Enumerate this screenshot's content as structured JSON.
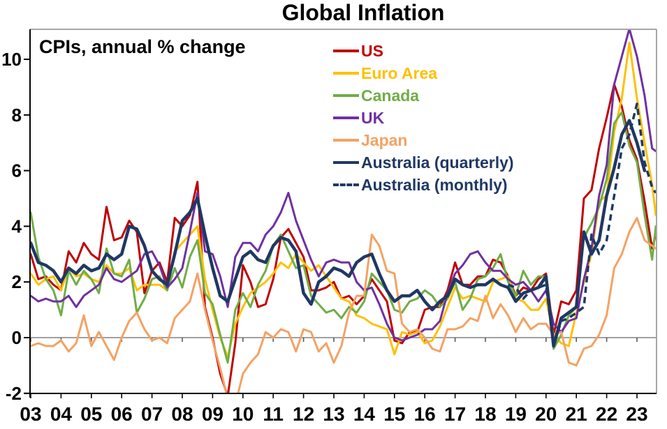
{
  "title": "Global Inflation",
  "chart_data": {
    "type": "line",
    "title": "Global Inflation",
    "subtitle": "CPIs, annual % change",
    "legend_position": "top-right-inside",
    "x_axis": {
      "tick_labels": [
        "03",
        "04",
        "05",
        "06",
        "07",
        "08",
        "09",
        "10",
        "11",
        "12",
        "13",
        "14",
        "15",
        "16",
        "17",
        "18",
        "19",
        "20",
        "21",
        "22",
        "23"
      ],
      "start_year": 2003,
      "label_step_years": 1
    },
    "y_axis": {
      "ticks": [
        -2,
        0,
        2,
        4,
        6,
        8,
        10
      ],
      "min": -2,
      "max": 11.1,
      "unit": "% change"
    },
    "grid": {
      "zero_line": true,
      "other_gridlines": false
    },
    "style": {
      "zero_line_color": "#808080",
      "frame_color": "#A6A6A6",
      "axis_color": "#000000",
      "text_color": "#000000",
      "background": "#FFFFFF"
    },
    "x_start": 2003.0,
    "x_step": 0.25,
    "series": [
      {
        "name": "US",
        "color": "#C00000",
        "style": "solid",
        "line_width": 3,
        "x_start": 2003.0,
        "values": [
          3.0,
          2.1,
          2.2,
          1.9,
          1.7,
          3.1,
          2.7,
          3.4,
          3.0,
          2.8,
          4.7,
          3.5,
          3.6,
          4.2,
          3.8,
          1.6,
          2.4,
          2.7,
          2.0,
          4.3,
          4.0,
          4.4,
          5.6,
          1.1,
          0.0,
          -1.3,
          -2.1,
          -0.2,
          2.6,
          2.0,
          1.1,
          1.2,
          2.1,
          3.6,
          3.9,
          3.4,
          2.9,
          1.7,
          1.7,
          1.8,
          2.0,
          1.4,
          1.5,
          1.2,
          1.5,
          2.1,
          1.7,
          1.3,
          -0.1,
          -0.2,
          0.2,
          0.2,
          1.0,
          1.1,
          1.1,
          1.7,
          2.7,
          1.9,
          1.9,
          2.2,
          2.2,
          2.8,
          2.7,
          2.2,
          1.5,
          1.8,
          1.7,
          2.1,
          2.3,
          0.1,
          1.3,
          1.2,
          1.7,
          5.0,
          5.3,
          6.8,
          7.9,
          9.1,
          8.3,
          7.1,
          6.4,
          4.9,
          3.2,
          3.7
        ]
      },
      {
        "name": "Euro Area",
        "color": "#FFC000",
        "style": "solid",
        "line_width": 3,
        "x_start": 2003.0,
        "values": [
          2.3,
          1.9,
          2.1,
          2.2,
          1.7,
          2.5,
          2.2,
          2.3,
          2.1,
          2.0,
          2.6,
          2.3,
          2.3,
          2.5,
          1.7,
          1.9,
          1.9,
          1.9,
          1.7,
          3.1,
          3.4,
          3.7,
          4.0,
          2.1,
          1.0,
          0.0,
          -0.7,
          0.5,
          1.1,
          1.6,
          1.8,
          2.0,
          2.3,
          2.7,
          2.5,
          3.0,
          2.7,
          2.4,
          2.6,
          2.2,
          1.8,
          1.4,
          1.3,
          0.8,
          0.7,
          0.5,
          0.4,
          0.3,
          -0.6,
          0.2,
          0.1,
          0.2,
          -0.2,
          -0.1,
          0.4,
          1.1,
          1.8,
          1.4,
          1.5,
          1.4,
          1.3,
          2.0,
          2.1,
          2.2,
          1.4,
          1.3,
          1.0,
          1.0,
          1.4,
          0.1,
          -0.2,
          -0.3,
          0.9,
          2.0,
          3.0,
          4.9,
          5.1,
          7.4,
          8.6,
          10.6,
          8.6,
          7.0,
          5.5,
          4.4
        ]
      },
      {
        "name": "Canada",
        "color": "#70AD47",
        "style": "solid",
        "line_width": 3,
        "x_start": 2003.0,
        "values": [
          4.5,
          2.9,
          2.1,
          1.7,
          0.8,
          2.4,
          1.9,
          2.4,
          2.1,
          1.6,
          3.2,
          2.3,
          2.2,
          2.8,
          0.9,
          1.4,
          2.1,
          2.2,
          1.7,
          2.5,
          1.8,
          2.9,
          3.5,
          1.6,
          1.2,
          0.1,
          -0.9,
          1.0,
          1.6,
          1.1,
          1.9,
          2.4,
          3.3,
          3.7,
          3.1,
          2.5,
          2.6,
          1.5,
          1.2,
          0.9,
          1.0,
          0.7,
          1.1,
          0.9,
          1.3,
          2.3,
          2.0,
          1.7,
          1.0,
          0.9,
          1.3,
          1.4,
          1.7,
          1.5,
          1.1,
          1.4,
          2.0,
          1.0,
          1.4,
          2.1,
          2.2,
          2.5,
          3.0,
          2.0,
          1.5,
          2.4,
          1.9,
          2.2,
          2.2,
          -0.4,
          0.1,
          0.8,
          1.1,
          3.6,
          4.1,
          4.7,
          5.7,
          7.7,
          8.1,
          6.9,
          6.3,
          4.4,
          2.8,
          4.0
        ]
      },
      {
        "name": "UK",
        "color": "#7030A0",
        "style": "solid",
        "line_width": 3,
        "x_start": 2003.0,
        "values": [
          1.5,
          1.3,
          1.4,
          1.3,
          1.3,
          1.5,
          1.1,
          1.5,
          1.7,
          1.9,
          2.5,
          2.1,
          2.0,
          2.2,
          2.4,
          3.0,
          3.1,
          2.6,
          1.8,
          2.1,
          2.5,
          3.8,
          5.2,
          3.1,
          3.0,
          2.2,
          1.1,
          2.9,
          3.4,
          3.4,
          3.1,
          3.7,
          4.0,
          4.5,
          5.2,
          4.2,
          3.5,
          2.8,
          2.2,
          2.7,
          2.8,
          2.7,
          2.7,
          2.0,
          1.7,
          1.8,
          1.2,
          0.5,
          0.0,
          -0.1,
          0.0,
          0.1,
          0.3,
          0.3,
          0.6,
          1.6,
          2.3,
          2.6,
          3.0,
          3.1,
          2.7,
          2.4,
          2.4,
          2.1,
          1.9,
          2.0,
          1.7,
          1.3,
          1.7,
          0.5,
          0.2,
          0.6,
          0.7,
          2.1,
          3.2,
          5.1,
          6.2,
          9.1,
          10.1,
          11.1,
          10.1,
          8.7,
          6.8,
          6.7
        ]
      },
      {
        "name": "Japan",
        "color": "#F4A263",
        "style": "solid",
        "line_width": 3,
        "x_start": 2003.0,
        "values": [
          -0.3,
          -0.2,
          -0.3,
          -0.3,
          -0.1,
          -0.5,
          -0.2,
          0.8,
          -0.3,
          0.2,
          -0.3,
          -0.8,
          0.0,
          0.6,
          0.9,
          0.3,
          -0.1,
          0.0,
          -0.2,
          0.7,
          1.0,
          1.3,
          2.3,
          1.0,
          -0.1,
          -1.1,
          -2.2,
          -2.4,
          -1.3,
          -0.9,
          -0.6,
          0.2,
          0.0,
          0.3,
          0.2,
          -0.5,
          0.3,
          0.2,
          -0.5,
          -0.2,
          -0.9,
          -0.3,
          0.9,
          1.5,
          1.5,
          3.7,
          3.3,
          2.4,
          2.3,
          0.5,
          0.2,
          0.3,
          0.0,
          -0.4,
          -0.5,
          0.3,
          0.3,
          0.4,
          0.7,
          0.6,
          1.5,
          0.7,
          1.2,
          0.8,
          0.2,
          0.7,
          0.3,
          0.5,
          0.5,
          0.1,
          0.2,
          -0.9,
          -1.0,
          -0.4,
          -0.3,
          0.1,
          0.8,
          2.5,
          3.0,
          3.8,
          4.3,
          3.5,
          3.3,
          3.2
        ]
      },
      {
        "name": "Australia (quarterly)",
        "color": "#1F3864",
        "style": "solid",
        "line_width": 4.5,
        "x_start": 2003.0,
        "values": [
          3.4,
          2.7,
          2.6,
          2.4,
          2.0,
          2.5,
          2.3,
          2.6,
          2.4,
          2.5,
          3.0,
          2.8,
          3.0,
          4.0,
          3.9,
          3.3,
          2.4,
          2.1,
          1.9,
          3.0,
          4.2,
          4.5,
          5.0,
          3.7,
          2.5,
          1.5,
          1.3,
          2.1,
          2.9,
          3.1,
          2.8,
          2.7,
          3.3,
          3.6,
          3.5,
          3.1,
          1.6,
          1.2,
          2.0,
          2.2,
          2.5,
          2.4,
          2.2,
          2.7,
          2.9,
          3.0,
          2.3,
          1.7,
          1.3,
          1.5,
          1.5,
          1.7,
          1.3,
          1.0,
          1.3,
          1.5,
          2.1,
          1.9,
          1.8,
          1.9,
          1.9,
          2.1,
          1.9,
          1.8,
          1.3,
          1.6,
          1.7,
          1.8,
          2.2,
          -0.3,
          0.7,
          0.9,
          1.1,
          3.8,
          3.0,
          3.5,
          5.1,
          6.1,
          7.3,
          7.8,
          7.0,
          6.0
        ]
      },
      {
        "name": "Australia (monthly)",
        "color": "#1F3864",
        "style": "dashed",
        "line_width": 3.5,
        "x_start": 2018.75,
        "values": [
          1.9,
          1.8,
          1.4,
          1.7,
          1.8,
          1.9,
          -0.3,
          0.6,
          0.7,
          0.9,
          1.1,
          3.7,
          3.0,
          3.5,
          5.1,
          6.8,
          7.3,
          8.4,
          6.3,
          5.4,
          5.2
        ]
      }
    ]
  }
}
